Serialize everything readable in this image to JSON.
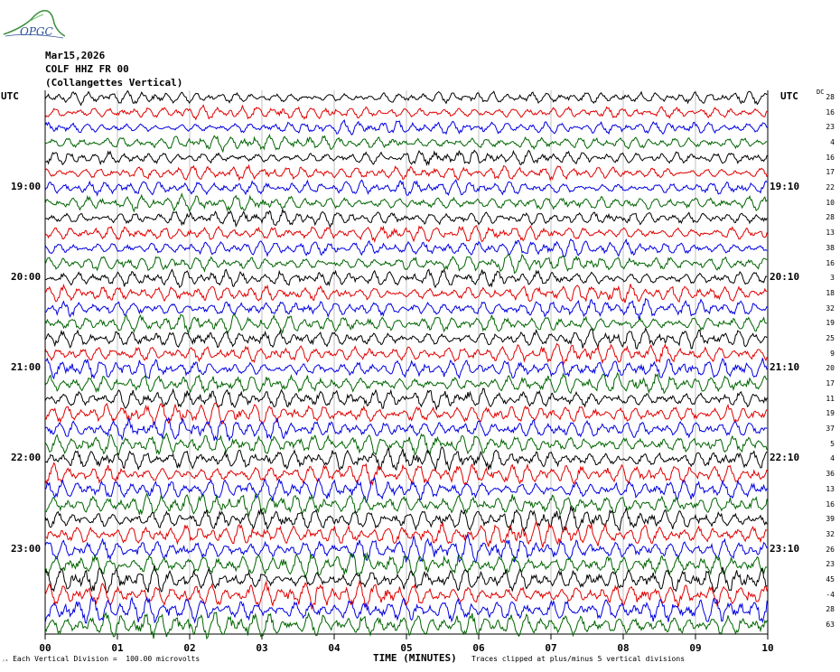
{
  "header": {
    "logo_text": "OPGC",
    "date": "Mar15,2026",
    "station": "COLF HHZ FR 00",
    "location": "(Collangettes Vertical)"
  },
  "utc_label_left": "UTC",
  "utc_label_right": "UTC",
  "dc_label": "DC",
  "footer": {
    "vertical_division": "Each Vertical Division =  100.00 microvolts",
    "xlabel": "TIME (MINUTES)",
    "clip_note": "Traces clipped at plus/minus 5 vertical divisions"
  },
  "chart_data": {
    "type": "line",
    "title": "COLF HHZ FR 00 (Collangettes Vertical)",
    "xlabel": "TIME (MINUTES)",
    "xlim": [
      0,
      10
    ],
    "x_ticks": [
      "00",
      "01",
      "02",
      "03",
      "04",
      "05",
      "06",
      "07",
      "08",
      "09",
      "10"
    ],
    "trace_count": 36,
    "trace_minutes": 10,
    "colors": [
      "#000000",
      "#e00000",
      "#0000e0",
      "#006400"
    ],
    "left_time_labels": [
      {
        "trace": 6,
        "label": "19:00"
      },
      {
        "trace": 12,
        "label": "20:00"
      },
      {
        "trace": 18,
        "label": "21:00"
      },
      {
        "trace": 24,
        "label": "22:00"
      },
      {
        "trace": 30,
        "label": "23:00"
      }
    ],
    "right_time_labels": [
      {
        "trace": 6,
        "label": "19:10"
      },
      {
        "trace": 12,
        "label": "20:10"
      },
      {
        "trace": 18,
        "label": "21:10"
      },
      {
        "trace": 24,
        "label": "22:10"
      },
      {
        "trace": 30,
        "label": "23:10"
      }
    ],
    "dc_offsets": [
      "28",
      "16",
      "23",
      "4",
      "16",
      "17",
      "22",
      "10",
      "28",
      "13",
      "38",
      "16",
      "3",
      "18",
      "32",
      "19",
      "25",
      "9",
      "20",
      "17",
      "11",
      "19",
      "37",
      "5",
      "4",
      "36",
      "13",
      "16",
      "39",
      "32",
      "26",
      "23",
      "45",
      "-4",
      "28",
      "63"
    ],
    "grid": true
  }
}
